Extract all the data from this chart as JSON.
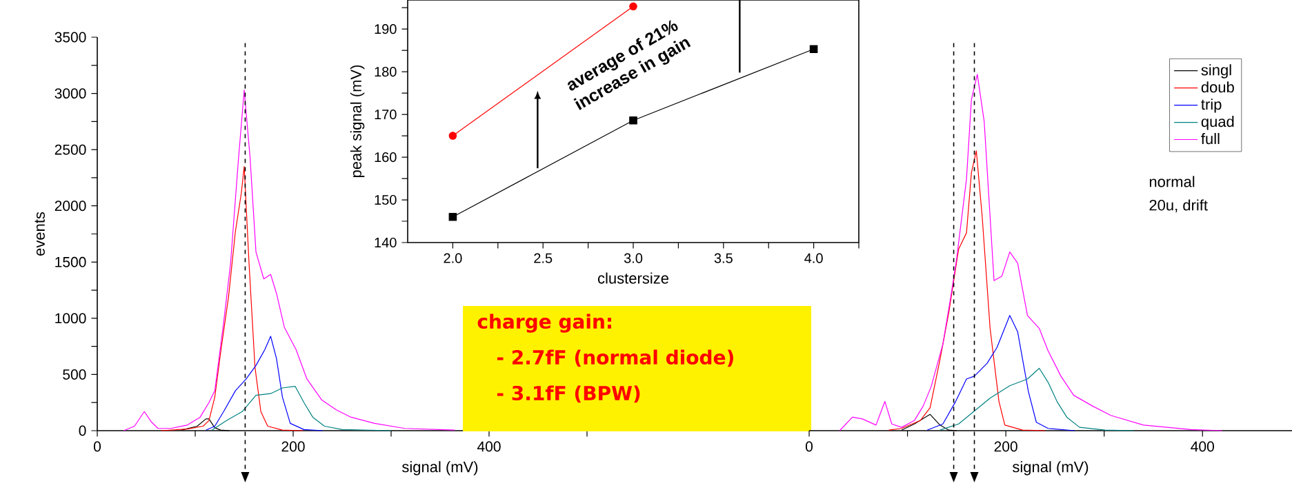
{
  "chart_data": [
    {
      "type": "line",
      "xlabel": "signal (mV)",
      "ylabel": "events",
      "xlim": [
        0,
        700
      ],
      "ylim": [
        0,
        3500
      ],
      "xticks": [
        0,
        {
          "value": 100,
          "label": null
        },
        200,
        {
          "value": 300,
          "label": null
        },
        400,
        {
          "value": 500,
          "label": null
        }
      ],
      "yticks": [
        0,
        {
          "value": 250,
          "label": null
        },
        500,
        {
          "value": 750,
          "label": null
        },
        1000,
        {
          "value": 1250,
          "label": null
        },
        1500,
        {
          "value": 1750,
          "label": null
        },
        2000,
        {
          "value": 2250,
          "label": null
        },
        2500,
        {
          "value": 2750,
          "label": null
        },
        3000,
        {
          "value": 3250,
          "label": null
        },
        3500
      ],
      "series": [
        {
          "color": "#000000",
          "x": [
            86,
            102,
            111,
            114,
            120,
            126,
            135
          ],
          "values": [
            5,
            40,
            105,
            105,
            25,
            5,
            0
          ]
        },
        {
          "color": "#ff0000",
          "x": [
            65,
            92,
            108,
            114,
            120,
            126,
            134,
            141,
            147,
            150,
            155,
            161,
            167,
            174,
            189,
            210
          ],
          "values": [
            0,
            15,
            40,
            90,
            300,
            700,
            1190,
            1770,
            2110,
            2350,
            1480,
            565,
            170,
            40,
            5,
            0
          ]
        },
        {
          "color": "#0000ff",
          "x": [
            111,
            120,
            129,
            141,
            152,
            162,
            171,
            177,
            183,
            189,
            197,
            211,
            230
          ],
          "values": [
            5,
            40,
            170,
            355,
            460,
            580,
            720,
            840,
            640,
            300,
            65,
            10,
            0
          ]
        },
        {
          "color": "#008080",
          "x": [
            117,
            132,
            148,
            162,
            177,
            189,
            202,
            211,
            220,
            232,
            250,
            300
          ],
          "values": [
            5,
            90,
            170,
            315,
            330,
            380,
            395,
            250,
            120,
            40,
            10,
            0
          ]
        },
        {
          "color": "#ff00ff",
          "x": [
            27,
            38,
            48,
            55,
            62,
            75,
            92,
            105,
            114,
            120,
            129,
            136,
            144,
            150,
            156,
            162,
            170,
            177,
            183,
            191,
            203,
            214,
            229,
            244,
            259,
            283,
            314,
            365
          ],
          "values": [
            0,
            40,
            170,
            80,
            20,
            20,
            50,
            120,
            250,
            355,
            960,
            1480,
            2400,
            3030,
            2430,
            1590,
            1350,
            1390,
            1220,
            920,
            720,
            460,
            275,
            185,
            120,
            65,
            20,
            5
          ]
        }
      ],
      "ref_lines": [
        {
          "axis": "x",
          "value": 151,
          "line_style": "dashed"
        }
      ],
      "annotations": [
        "charge gain:",
        "- 2.7fF (normal diode)",
        "- 3.1fF (BPW)"
      ]
    },
    {
      "type": "line",
      "xlabel": "clustersize",
      "ylabel": "peak signal (mV)",
      "xlim": [
        1.75,
        4.25
      ],
      "ylim": [
        140,
        196.8
      ],
      "x": [
        2,
        3,
        4
      ],
      "xticks": [
        {
          "value": 2,
          "label": "2.0"
        },
        {
          "value": 2.25,
          "label": null
        },
        {
          "value": 2.5,
          "label": "2.5"
        },
        {
          "value": 2.75,
          "label": null
        },
        {
          "value": 3,
          "label": "3.0"
        },
        {
          "value": 3.25,
          "label": null
        },
        {
          "value": 3.5,
          "label": "3.5"
        },
        {
          "value": 3.75,
          "label": null
        },
        {
          "value": 4,
          "label": "4.0"
        },
        {
          "value": 4.25,
          "label": null
        }
      ],
      "yticks": [
        140,
        {
          "value": 145,
          "label": null
        },
        150,
        {
          "value": 155,
          "label": null
        },
        160,
        {
          "value": 165,
          "label": null
        },
        170,
        {
          "value": 175,
          "label": null
        },
        180,
        {
          "value": 185,
          "label": null
        },
        190,
        {
          "value": 195,
          "label": null
        }
      ],
      "series": [
        {
          "color": "#ff0000",
          "marker": "circle",
          "values": [
            165,
            195.3,
            null
          ]
        },
        {
          "color": "#000000",
          "marker": "square",
          "values": [
            146,
            168.6,
            185.3
          ]
        }
      ],
      "annotations": [
        "average of 21%",
        "increase in gain"
      ]
    },
    {
      "type": "line",
      "xlabel": "signal (mV)",
      "xlim": [
        0,
        491
      ],
      "ylim": [
        0,
        3500
      ],
      "tick_labels": "x",
      "legend": "top right",
      "xticks": [
        0,
        {
          "value": 100,
          "label": null
        },
        200,
        {
          "value": 300,
          "label": null
        },
        400
      ],
      "series": [
        {
          "name": "singl",
          "color": "#000000",
          "x": [
            94,
            107,
            123,
            133,
            142,
            150
          ],
          "values": [
            5,
            60,
            145,
            50,
            5,
            0
          ]
        },
        {
          "name": "doub",
          "color": "#ff0000",
          "x": [
            81,
            94,
            113,
            123,
            133,
            142,
            152,
            160,
            165,
            170,
            176,
            184,
            193,
            199,
            217,
            240
          ],
          "values": [
            5,
            20,
            90,
            205,
            630,
            1050,
            1615,
            1760,
            2295,
            2490,
            1900,
            910,
            260,
            50,
            5,
            0
          ]
        },
        {
          "name": "trip",
          "color": "#0000ff",
          "x": [
            120,
            136,
            149,
            160,
            168,
            181,
            191,
            204,
            212,
            223,
            231,
            243,
            270
          ],
          "values": [
            5,
            60,
            260,
            460,
            485,
            600,
            740,
            1025,
            880,
            345,
            75,
            20,
            0
          ]
        },
        {
          "name": "quad",
          "color": "#008080",
          "x": [
            133,
            152,
            168,
            184,
            204,
            222,
            234,
            243,
            252,
            262,
            275,
            301,
            330
          ],
          "values": [
            5,
            60,
            175,
            290,
            400,
            460,
            555,
            430,
            260,
            120,
            30,
            5,
            0
          ]
        },
        {
          "name": "full",
          "color": "#ff00ff",
          "x": [
            31,
            44,
            54,
            68,
            77,
            84,
            94,
            107,
            116,
            124,
            136,
            144,
            150,
            160,
            165,
            171,
            178,
            188,
            196,
            204,
            212,
            222,
            234,
            243,
            256,
            269,
            288,
            307,
            340,
            388,
            420
          ],
          "values": [
            0,
            120,
            105,
            50,
            260,
            60,
            30,
            90,
            220,
            390,
            770,
            1190,
            1530,
            2240,
            2945,
            3170,
            2750,
            1335,
            1375,
            1590,
            1490,
            1025,
            910,
            710,
            485,
            315,
            220,
            135,
            50,
            10,
            0
          ]
        }
      ],
      "ref_lines": [
        {
          "axis": "x",
          "value": 168,
          "line_style": "dashed"
        },
        {
          "axis": "x",
          "value": 147,
          "line_style": "dashed"
        }
      ],
      "annotations": [
        "normal",
        "20u, drift"
      ]
    }
  ]
}
